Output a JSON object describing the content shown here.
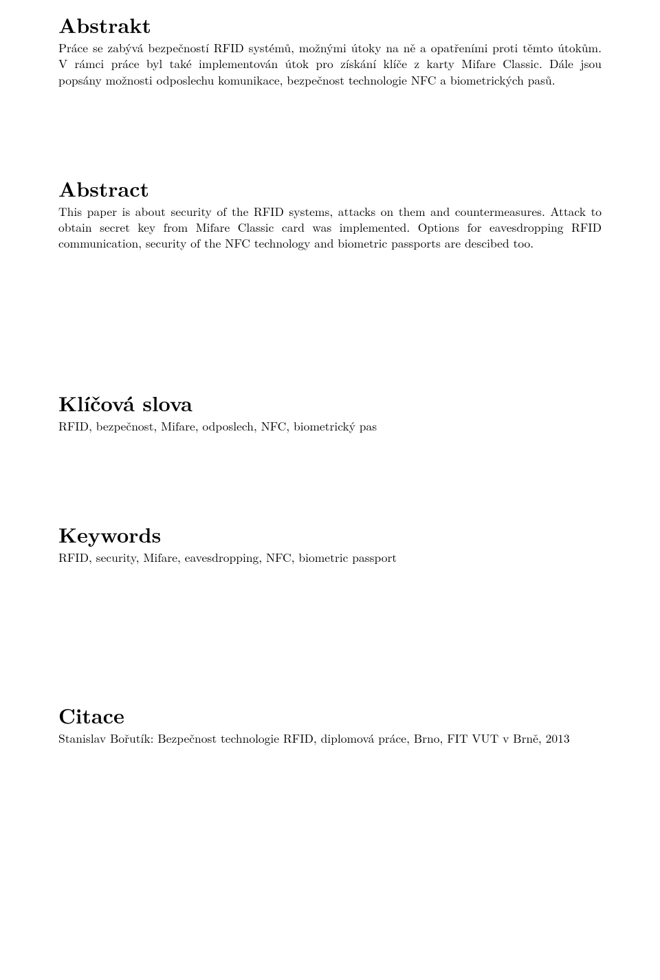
{
  "sections": {
    "abstrakt": {
      "heading": "Abstrakt",
      "body": "Práce se zabývá bezpečností RFID systémů, možnými útoky na ně a opatřeními proti těmto útokům. V rámci práce byl také implementován útok pro získání klíče z karty Mifare Classic. Dále jsou popsány možnosti odposlechu komunikace, bezpečnost technologie NFC a biometrických pasů."
    },
    "abstract": {
      "heading": "Abstract",
      "body": "This paper is about security of the RFID systems, attacks on them and countermeasures. Attack to obtain secret key from Mifare Classic card was implemented. Options for eavesdropping RFID communication, security of the NFC technology and biometric passports are descibed too."
    },
    "klicova_slova": {
      "heading": "Klíčová slova",
      "body": "RFID, bezpečnost, Mifare, odposlech, NFC, biometrický pas"
    },
    "keywords": {
      "heading": "Keywords",
      "body": "RFID, security, Mifare, eavesdropping, NFC, biometric passport"
    },
    "citace": {
      "heading": "Citace",
      "body": "Stanislav Bořutík: Bezpečnost technologie RFID, diplomová práce, Brno, FIT VUT v Brně, 2013"
    }
  }
}
